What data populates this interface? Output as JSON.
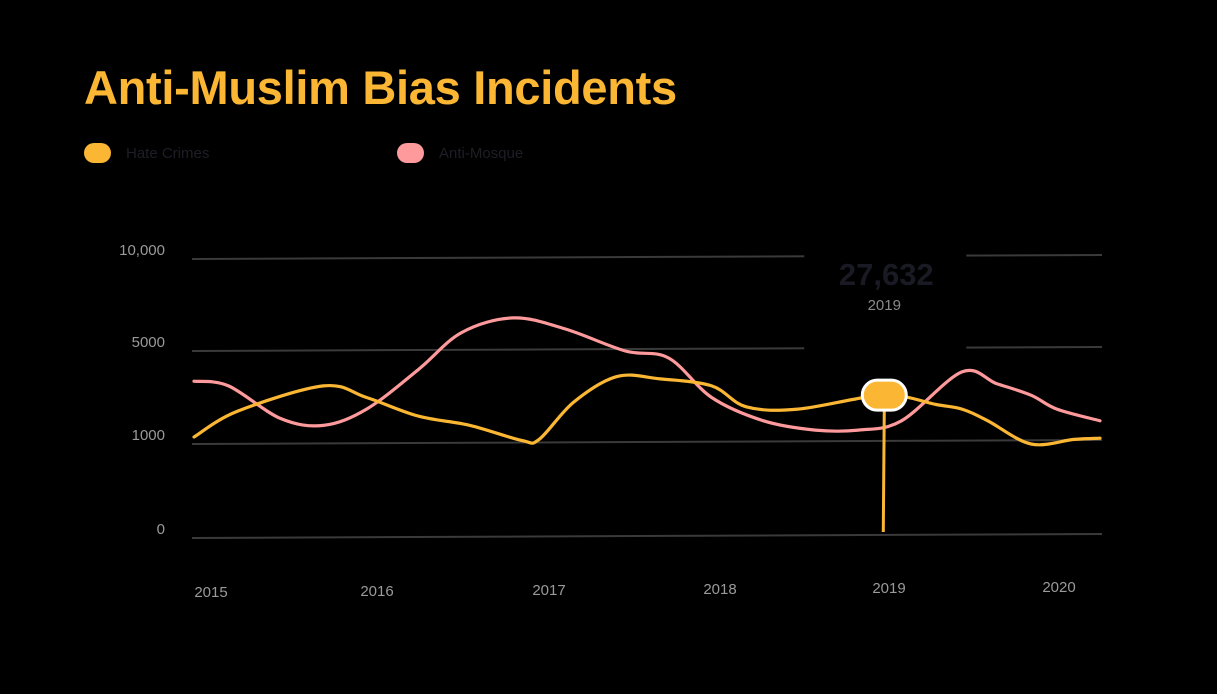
{
  "colors": {
    "hate_crimes": "#fbb734",
    "anti_mosque": "#ff9a9c",
    "grid": "#3a3a3a",
    "background": "#000000"
  },
  "chart_data": {
    "type": "line",
    "title": "Anti-Muslim Bias Incidents",
    "legend": [
      {
        "name": "Hate Crimes",
        "color": "#fbb734"
      },
      {
        "name": "Anti-Mosque",
        "color": "#ff9a9c"
      }
    ],
    "legend_placement": "top-left",
    "grid": true,
    "x_ticks": [
      "2015",
      "2016",
      "2017",
      "2018",
      "2019",
      "2020"
    ],
    "y_ticks": [
      "0",
      "1000",
      "5000",
      "10,000"
    ],
    "series": [
      {
        "name": "Hate Crimes",
        "color": "#fbb734",
        "points": [
          {
            "x": 2015.0,
            "y": 1300
          },
          {
            "x": 2015.25,
            "y": 2400
          },
          {
            "x": 2015.75,
            "y": 3500
          },
          {
            "x": 2016.0,
            "y": 3000
          },
          {
            "x": 2016.3,
            "y": 2200
          },
          {
            "x": 2016.6,
            "y": 1800
          },
          {
            "x": 2016.9,
            "y": 1150
          },
          {
            "x": 2017.0,
            "y": 1200
          },
          {
            "x": 2017.2,
            "y": 2800
          },
          {
            "x": 2017.45,
            "y": 3900
          },
          {
            "x": 2017.7,
            "y": 3800
          },
          {
            "x": 2018.0,
            "y": 3500
          },
          {
            "x": 2018.2,
            "y": 2600
          },
          {
            "x": 2018.5,
            "y": 2500
          },
          {
            "x": 2019.0,
            "y": 3100
          },
          {
            "x": 2019.3,
            "y": 2700
          },
          {
            "x": 2019.45,
            "y": 2500
          },
          {
            "x": 2019.6,
            "y": 2000
          },
          {
            "x": 2019.85,
            "y": 1000
          },
          {
            "x": 2020.1,
            "y": 1200
          },
          {
            "x": 2020.25,
            "y": 1250
          }
        ]
      },
      {
        "name": "Anti-Mosque",
        "color": "#ff9a9c",
        "points": [
          {
            "x": 2015.0,
            "y": 3700
          },
          {
            "x": 2015.2,
            "y": 3500
          },
          {
            "x": 2015.5,
            "y": 2100
          },
          {
            "x": 2015.75,
            "y": 1800
          },
          {
            "x": 2016.0,
            "y": 2500
          },
          {
            "x": 2016.3,
            "y": 4200
          },
          {
            "x": 2016.55,
            "y": 6000
          },
          {
            "x": 2016.85,
            "y": 6800
          },
          {
            "x": 2017.15,
            "y": 6200
          },
          {
            "x": 2017.5,
            "y": 5000
          },
          {
            "x": 2017.75,
            "y": 4700
          },
          {
            "x": 2018.0,
            "y": 3000
          },
          {
            "x": 2018.3,
            "y": 2000
          },
          {
            "x": 2018.6,
            "y": 1600
          },
          {
            "x": 2018.85,
            "y": 1600
          },
          {
            "x": 2019.1,
            "y": 2000
          },
          {
            "x": 2019.45,
            "y": 4100
          },
          {
            "x": 2019.65,
            "y": 3600
          },
          {
            "x": 2019.85,
            "y": 3100
          },
          {
            "x": 2020.0,
            "y": 2500
          },
          {
            "x": 2020.25,
            "y": 2000
          }
        ]
      }
    ],
    "annotation": {
      "value": "27,632",
      "label": "2019",
      "series": "Hate Crimes",
      "x": 2019.0,
      "y": 3100
    }
  }
}
